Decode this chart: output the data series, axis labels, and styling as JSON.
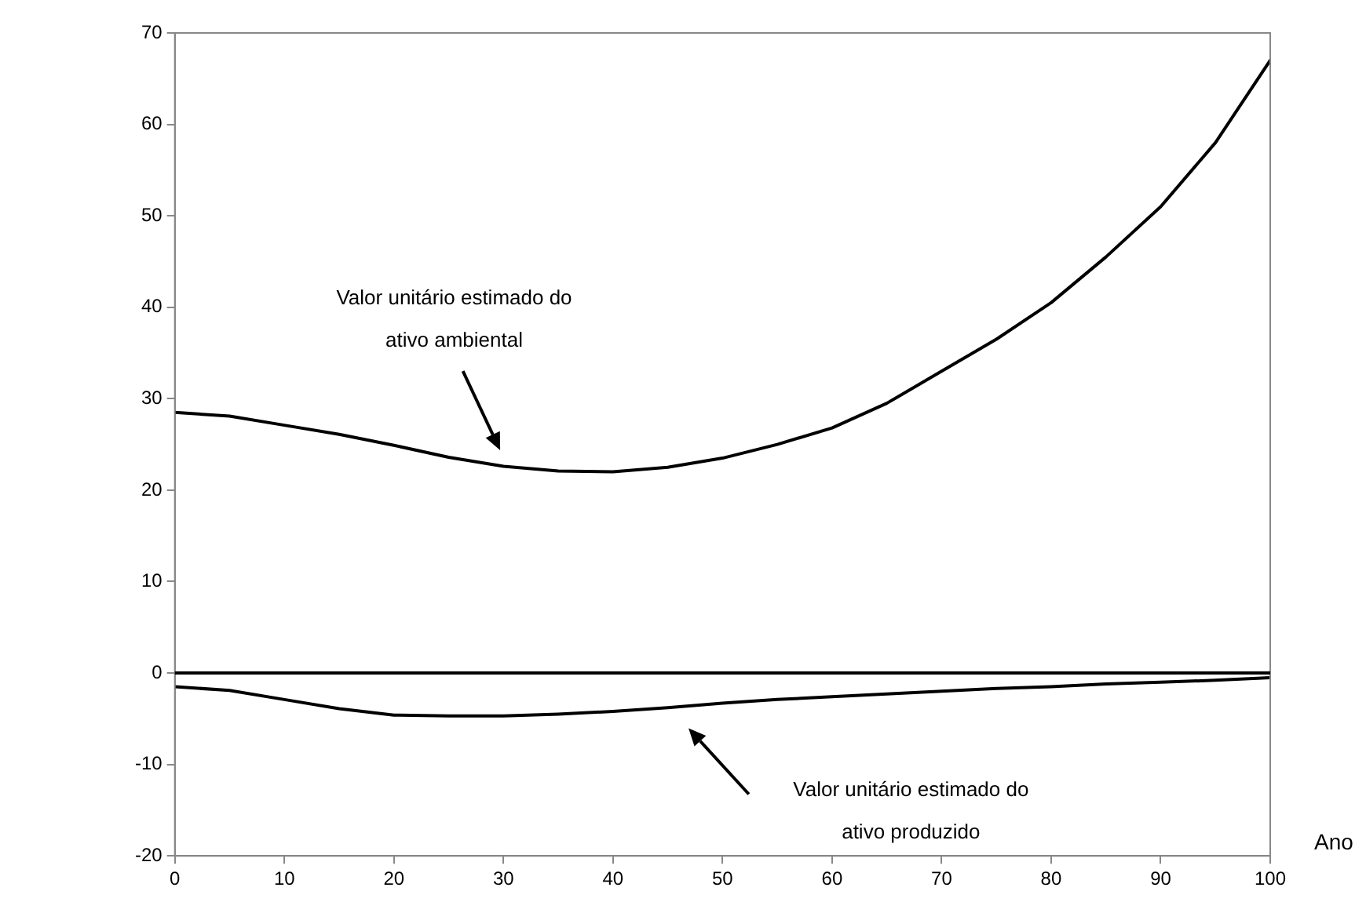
{
  "chart_data": {
    "type": "line",
    "xlabel": "Ano",
    "x": [
      0,
      5,
      10,
      15,
      20,
      25,
      30,
      35,
      40,
      45,
      50,
      55,
      60,
      65,
      70,
      75,
      80,
      85,
      90,
      95,
      100
    ],
    "series": [
      {
        "color": "#000000",
        "values": [
          28.5,
          28.1,
          27.1,
          26.1,
          24.9,
          23.6,
          22.6,
          22.1,
          22,
          22.5,
          23.5,
          25,
          26.8,
          29.5,
          33,
          36.5,
          40.5,
          45.5,
          51,
          58,
          67
        ]
      },
      {
        "color": "#000000",
        "values": [
          -1.5,
          -1.9,
          -2.9,
          -3.9,
          -4.6,
          -4.7,
          -4.7,
          -4.5,
          -4.2,
          -3.8,
          -3.3,
          -2.9,
          -2.6,
          -2.3,
          -2,
          -1.7,
          -1.5,
          -1.2,
          -1,
          -0.8,
          -0.5
        ]
      }
    ],
    "xlim": [
      0,
      100
    ],
    "xticks": [
      0,
      10,
      20,
      30,
      40,
      50,
      60,
      70,
      80,
      90,
      100
    ],
    "ylim": [
      -20,
      70
    ],
    "yticks": [
      -20,
      -10,
      0,
      10,
      20,
      30,
      40,
      50,
      60,
      70
    ],
    "ref_lines": [
      {
        "axis": "y",
        "value": 0,
        "color": "#000000"
      }
    ],
    "annotations": [
      "Valor unitário estimado do ativo ambiental",
      "Valor unitário estimado do ativo produzido"
    ],
    "grid": false,
    "legend": false,
    "marker": "none",
    "line_style": "solid"
  }
}
